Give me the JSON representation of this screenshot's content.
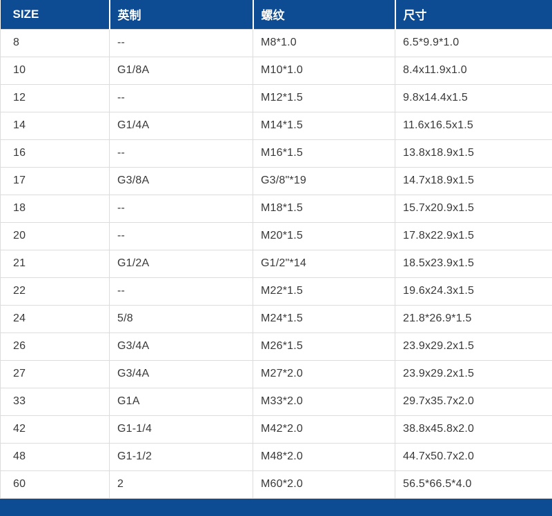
{
  "colors": {
    "header_bg": "#0d4b93",
    "header_text": "#ffffff",
    "body_text": "#383838",
    "cell_border": "#dcdcdc",
    "bottom_bar": "#0d4b93"
  },
  "table": {
    "headers": [
      "SIZE",
      "英制",
      "螺纹",
      "尺寸"
    ],
    "rows": [
      [
        "8",
        "--",
        "M8*1.0",
        "6.5*9.9*1.0"
      ],
      [
        "10",
        "G1/8A",
        "M10*1.0",
        "8.4x11.9x1.0"
      ],
      [
        "12",
        "--",
        "M12*1.5",
        "9.8x14.4x1.5"
      ],
      [
        "14",
        "G1/4A",
        "M14*1.5",
        "11.6x16.5x1.5"
      ],
      [
        "16",
        "--",
        "M16*1.5",
        "13.8x18.9x1.5"
      ],
      [
        "17",
        "G3/8A",
        "G3/8\"*19",
        "14.7x18.9x1.5"
      ],
      [
        "18",
        "--",
        "M18*1.5",
        "15.7x20.9x1.5"
      ],
      [
        "20",
        "--",
        "M20*1.5",
        "17.8x22.9x1.5"
      ],
      [
        "21",
        "G1/2A",
        "G1/2\"*14",
        "18.5x23.9x1.5"
      ],
      [
        "22",
        "--",
        "M22*1.5",
        "19.6x24.3x1.5"
      ],
      [
        "24",
        "5/8",
        "M24*1.5",
        "21.8*26.9*1.5"
      ],
      [
        "26",
        "G3/4A",
        "M26*1.5",
        "23.9x29.2x1.5"
      ],
      [
        "27",
        "G3/4A",
        "M27*2.0",
        "23.9x29.2x1.5"
      ],
      [
        "33",
        "G1A",
        "M33*2.0",
        "29.7x35.7x2.0"
      ],
      [
        "42",
        "G1-1/4",
        "M42*2.0",
        "38.8x45.8x2.0"
      ],
      [
        "48",
        "G1-1/2",
        "M48*2.0",
        "44.7x50.7x2.0"
      ],
      [
        "60",
        "2",
        "M60*2.0",
        "56.5*66.5*4.0"
      ]
    ]
  }
}
